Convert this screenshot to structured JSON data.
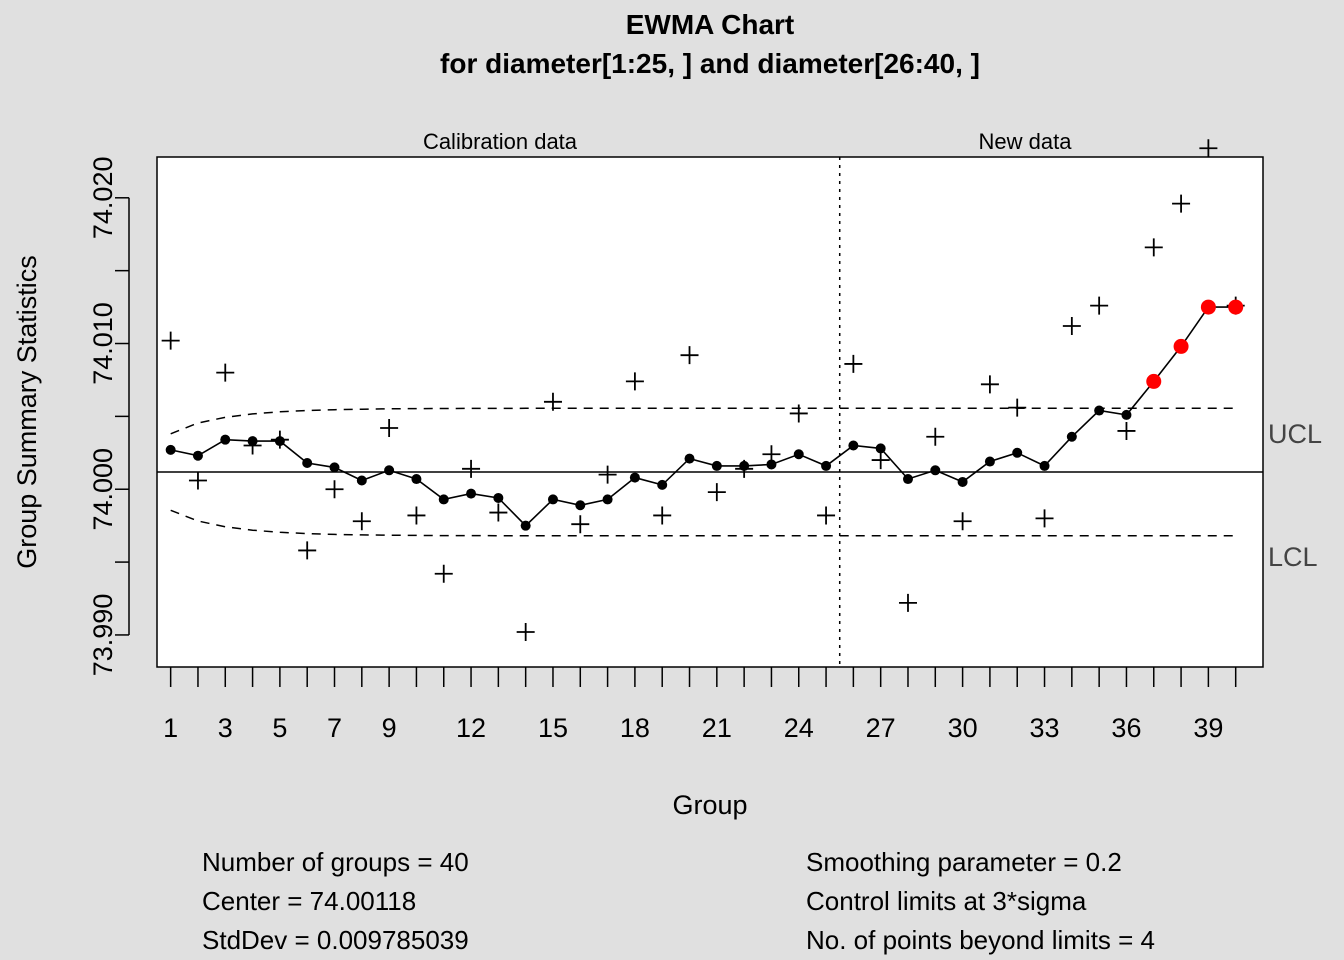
{
  "title_line1": "EWMA Chart",
  "title_line2": "for diameter[1:25, ] and diameter[26:40, ]",
  "calibration_label": "Calibration data",
  "new_label": "New data",
  "ucl_label": "UCL",
  "lcl_label": "LCL",
  "stats_left": [
    "Number of groups = 40",
    "Center = 74.00118",
    "StdDev = 0.009785039"
  ],
  "stats_right": [
    "Smoothing parameter =  0.2",
    "Control limits at 3*sigma",
    "No. of points beyond limits = 4"
  ],
  "colors": {
    "background": "#e0e0e0",
    "plot": "#ffffff",
    "violation": "#ff0000",
    "line": "#000000"
  },
  "chart_data": {
    "type": "line",
    "xlabel": "Group",
    "ylabel": "Group Summary Statistics",
    "xlim": [
      0.5,
      41
    ],
    "ylim": [
      73.9878,
      74.0228
    ],
    "yticks": [
      73.99,
      73.995,
      74.0,
      74.005,
      74.01,
      74.015,
      74.02
    ],
    "ytick_labels": [
      "73.990",
      "",
      "74.000",
      "",
      "74.010",
      "",
      "74.020"
    ],
    "xtick_labels": [
      "1",
      "3",
      "5",
      "7",
      "9",
      "12",
      "15",
      "18",
      "21",
      "24",
      "27",
      "30",
      "33",
      "36",
      "39"
    ],
    "xtick_positions": [
      1,
      3,
      5,
      7,
      9,
      12,
      15,
      18,
      21,
      24,
      27,
      30,
      33,
      36,
      39
    ],
    "calibration_groups": 25,
    "center": 74.00118,
    "lambda": 0.2,
    "sigma_group": 0.004376,
    "nsigmas": 3,
    "group_stats": [
      74.0102,
      74.0006,
      74.008,
      74.003,
      74.0034,
      73.9958,
      74.0,
      73.9978,
      74.0042,
      73.9982,
      73.9942,
      74.0014,
      73.9984,
      73.9902,
      74.006,
      73.9976,
      74.001,
      74.0074,
      73.9982,
      74.0092,
      73.9998,
      74.0014,
      74.0024,
      74.0052,
      73.9982,
      74.0086,
      74.002,
      73.9922,
      74.0036,
      73.9978,
      74.0072,
      74.0056,
      73.998,
      74.0112,
      74.0126,
      74.004,
      74.0166,
      74.0196,
      74.0234,
      74.0126
    ],
    "ewma": [
      74.0027,
      74.0023,
      74.0034,
      74.0033,
      74.0033,
      74.0018,
      74.0015,
      74.0006,
      74.0013,
      74.0007,
      73.9993,
      73.9997,
      73.9994,
      73.9975,
      73.9993,
      73.9989,
      73.9993,
      74.0008,
      74.0003,
      74.0021,
      74.0016,
      74.0016,
      74.0017,
      74.0024,
      74.0016,
      74.003,
      74.0028,
      74.0007,
      74.0013,
      74.0005,
      74.0019,
      74.0025,
      74.0016,
      74.0036,
      74.0054,
      74.0051,
      74.0074,
      74.0098,
      74.0125,
      74.0125
    ],
    "violations": [
      37,
      38,
      39,
      40
    ],
    "ucl_final": 74.00556,
    "lcl_final": 73.9968
  }
}
